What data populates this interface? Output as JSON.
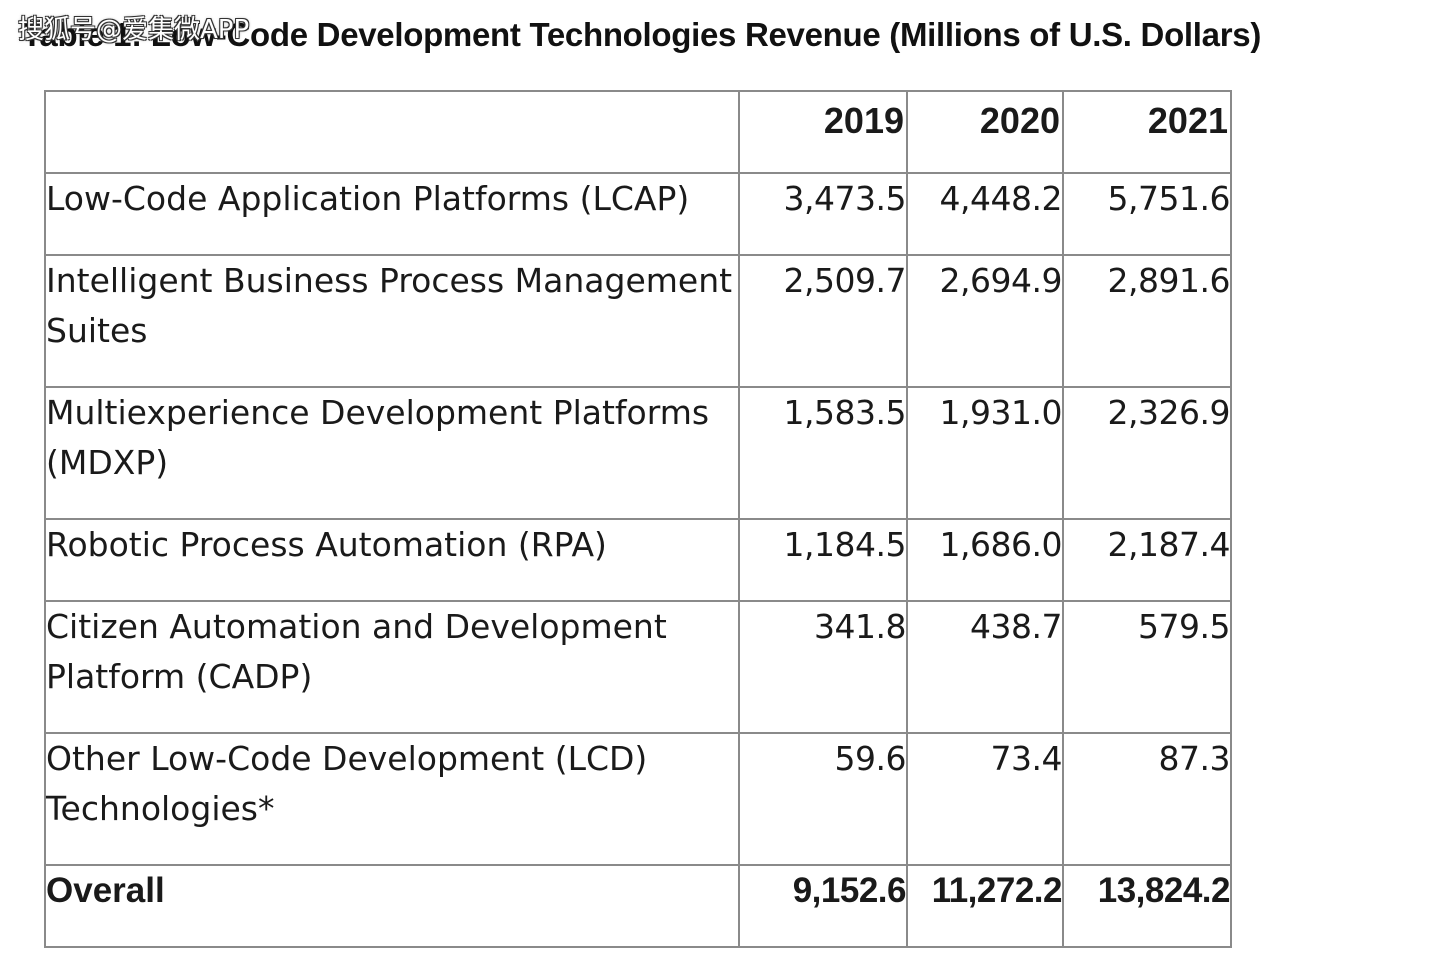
{
  "title": "Table 1: Low-Code Development Technologies Revenue (Millions of U.S. Dollars)",
  "watermark": "搜狐号@爱集微APP",
  "table": {
    "header": {
      "label": "",
      "years": [
        "2019",
        "2020",
        "2021"
      ]
    },
    "rows": [
      {
        "label": "Low-Code Application Platforms (LCAP)",
        "values": [
          "3,473.5",
          "4,448.2",
          "5,751.6"
        ]
      },
      {
        "label": "Intelligent Business Process Management Suites",
        "values": [
          "2,509.7",
          "2,694.9",
          "2,891.6"
        ]
      },
      {
        "label": "Multiexperience Development Platforms (MDXP)",
        "values": [
          "1,583.5",
          "1,931.0",
          "2,326.9"
        ]
      },
      {
        "label": "Robotic Process Automation (RPA)",
        "values": [
          "1,184.5",
          "1,686.0",
          "2,187.4"
        ]
      },
      {
        "label": "Citizen Automation and Development Platform (CADP)",
        "values": [
          "341.8",
          "438.7",
          "579.5"
        ]
      },
      {
        "label": "Other Low-Code Development (LCD) Technologies*",
        "values": [
          "59.6",
          "73.4",
          "87.3"
        ]
      }
    ],
    "total": {
      "label": "Overall",
      "values": [
        "9,152.6",
        "11,272.2",
        "13,824.2"
      ]
    }
  }
}
